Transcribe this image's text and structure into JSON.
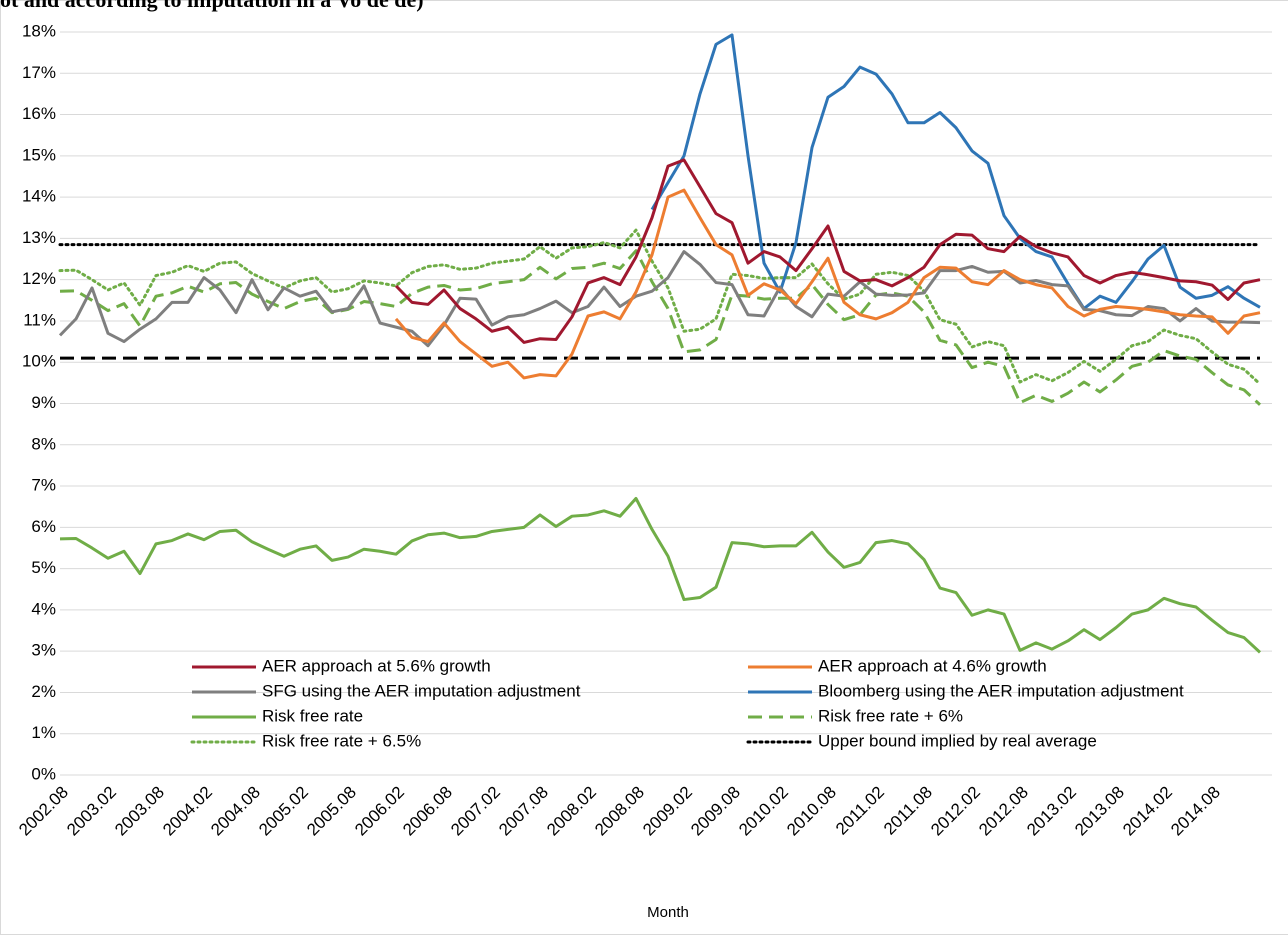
{
  "chart_data": {
    "type": "line",
    "title": "ot and according to imputation in a Vo de de)",
    "x_label": "Month",
    "categories": [
      "2002.08",
      null,
      null,
      "2003.02",
      null,
      null,
      "2003.08",
      null,
      null,
      "2004.02",
      null,
      null,
      "2004.08",
      null,
      null,
      "2005.02",
      null,
      null,
      "2005.08",
      null,
      null,
      "2006.02",
      null,
      null,
      "2006.08",
      null,
      null,
      "2007.02",
      null,
      null,
      "2007.08",
      null,
      null,
      "2008.02",
      null,
      null,
      "2008.08",
      null,
      null,
      "2009.02",
      null,
      null,
      "2009.08",
      null,
      null,
      "2010.02",
      null,
      null,
      "2010.08",
      null,
      null,
      "2011.02",
      null,
      null,
      "2011.08",
      null,
      null,
      "2012.02",
      null,
      null,
      "2012.08",
      null,
      null,
      "2013.02",
      null,
      null,
      "2013.08",
      null,
      null,
      "2014.02",
      null,
      null,
      "2014.08",
      null,
      null,
      null
    ],
    "ylim": [
      0,
      18
    ],
    "yticks": [
      {
        "value": 0,
        "label": "0%"
      },
      {
        "value": 1,
        "label": "1%"
      },
      {
        "value": 2,
        "label": "2%"
      },
      {
        "value": 3,
        "label": "3%"
      },
      {
        "value": 4,
        "label": "4%"
      },
      {
        "value": 5,
        "label": "5%"
      },
      {
        "value": 6,
        "label": "6%"
      },
      {
        "value": 7,
        "label": "7%"
      },
      {
        "value": 8,
        "label": "8%"
      },
      {
        "value": 9,
        "label": "9%"
      },
      {
        "value": 10,
        "label": "10%"
      },
      {
        "value": 11,
        "label": "11%"
      },
      {
        "value": 12,
        "label": "12%"
      },
      {
        "value": 13,
        "label": "13%"
      },
      {
        "value": 14,
        "label": "14%"
      },
      {
        "value": 15,
        "label": "15%"
      },
      {
        "value": 16,
        "label": "16%"
      },
      {
        "value": 17,
        "label": "17%"
      },
      {
        "value": 18,
        "label": "18%"
      }
    ],
    "grid": true,
    "series": [
      {
        "name": "AER approach at 5.6% growth",
        "color": "#a0182f",
        "style": "solid",
        "values": [
          null,
          null,
          null,
          null,
          null,
          null,
          null,
          null,
          null,
          null,
          null,
          null,
          null,
          null,
          null,
          null,
          null,
          null,
          null,
          null,
          null,
          11.85,
          11.45,
          11.4,
          11.75,
          11.3,
          11.05,
          10.75,
          10.85,
          10.48,
          10.57,
          10.55,
          11.1,
          11.92,
          12.05,
          11.88,
          12.55,
          13.5,
          14.75,
          14.9,
          14.25,
          13.6,
          13.38,
          12.4,
          12.68,
          12.55,
          12.22,
          12.75,
          13.3,
          12.2,
          11.97,
          12.0,
          11.85,
          12.05,
          12.3,
          12.85,
          13.1,
          13.08,
          12.75,
          12.68,
          13.05,
          12.8,
          12.65,
          12.55,
          12.1,
          11.92,
          12.1,
          12.18,
          12.12,
          12.05,
          11.97,
          11.95,
          11.87,
          11.52,
          11.92,
          12.0
        ]
      },
      {
        "name": "AER approach at 4.6% growth",
        "color": "#ed7d31",
        "style": "solid",
        "values": [
          null,
          null,
          null,
          null,
          null,
          null,
          null,
          null,
          null,
          null,
          null,
          null,
          null,
          null,
          null,
          null,
          null,
          null,
          null,
          null,
          null,
          11.05,
          10.6,
          10.5,
          10.95,
          10.5,
          10.2,
          9.9,
          10.0,
          9.62,
          9.7,
          9.67,
          10.2,
          11.12,
          11.22,
          11.05,
          11.7,
          12.6,
          14.0,
          14.17,
          13.5,
          12.85,
          12.6,
          11.62,
          11.9,
          11.75,
          11.42,
          11.95,
          12.52,
          11.45,
          11.15,
          11.05,
          11.2,
          11.45,
          12.05,
          12.3,
          12.28,
          11.95,
          11.88,
          12.22,
          12.0,
          11.88,
          11.8,
          11.35,
          11.12,
          11.28,
          11.35,
          11.32,
          11.28,
          11.22,
          11.15,
          11.12,
          11.1,
          10.7,
          11.12,
          11.2
        ]
      },
      {
        "name": "SFG using the AER imputation adjustment",
        "color": "#7f7f7f",
        "style": "solid",
        "values": [
          10.65,
          11.05,
          11.8,
          10.7,
          10.5,
          10.8,
          11.05,
          11.45,
          11.45,
          12.05,
          11.75,
          11.2,
          12.0,
          11.27,
          11.8,
          11.6,
          11.72,
          11.22,
          11.3,
          11.85,
          10.95,
          10.85,
          10.75,
          10.4,
          10.9,
          11.55,
          11.53,
          10.9,
          11.1,
          11.15,
          11.3,
          11.48,
          11.2,
          11.35,
          11.82,
          11.35,
          11.6,
          11.72,
          12.05,
          12.68,
          12.37,
          11.93,
          11.88,
          11.15,
          11.12,
          11.82,
          11.35,
          11.1,
          11.65,
          11.6,
          11.95,
          11.65,
          11.62,
          11.63,
          11.68,
          12.22,
          12.22,
          12.32,
          12.18,
          12.2,
          11.92,
          11.98,
          11.88,
          11.85,
          11.28,
          11.25,
          11.15,
          11.13,
          11.35,
          11.3,
          11.0,
          11.3,
          11.0,
          10.97,
          10.97,
          10.96
        ]
      },
      {
        "name": "Bloomberg using the AER imputation adjustment",
        "color": "#2e75b6",
        "style": "solid",
        "values": [
          null,
          null,
          null,
          null,
          null,
          null,
          null,
          null,
          null,
          null,
          null,
          null,
          null,
          null,
          null,
          null,
          null,
          null,
          null,
          null,
          null,
          null,
          null,
          null,
          null,
          null,
          null,
          null,
          null,
          null,
          null,
          null,
          null,
          null,
          null,
          null,
          null,
          13.7,
          14.35,
          15.0,
          16.5,
          17.7,
          17.93,
          15.0,
          12.4,
          11.7,
          12.9,
          15.2,
          16.42,
          16.68,
          17.15,
          16.98,
          16.5,
          15.8,
          15.8,
          16.05,
          15.68,
          15.12,
          14.82,
          13.55,
          13.0,
          12.68,
          12.55,
          11.9,
          11.3,
          11.6,
          11.45,
          11.95,
          12.5,
          12.83,
          11.82,
          11.55,
          11.62,
          11.83,
          11.55,
          11.33
        ]
      },
      {
        "name": "Risk free rate",
        "color": "#70ad47",
        "style": "solid",
        "values": [
          5.72,
          5.73,
          5.5,
          5.25,
          5.42,
          4.88,
          5.6,
          5.68,
          5.84,
          5.7,
          5.9,
          5.93,
          5.65,
          5.47,
          5.3,
          5.47,
          5.55,
          5.2,
          5.28,
          5.47,
          5.42,
          5.35,
          5.67,
          5.82,
          5.86,
          5.75,
          5.78,
          5.9,
          5.95,
          6.0,
          6.3,
          6.02,
          6.27,
          6.3,
          6.4,
          6.27,
          6.7,
          5.95,
          5.3,
          4.25,
          4.3,
          4.55,
          5.63,
          5.6,
          5.53,
          5.55,
          5.55,
          5.88,
          5.4,
          5.03,
          5.15,
          5.63,
          5.68,
          5.6,
          5.22,
          4.53,
          4.42,
          3.87,
          4.0,
          3.9,
          3.02,
          3.2,
          3.05,
          3.25,
          3.52,
          3.28,
          3.57,
          3.9,
          4.0,
          4.28,
          4.15,
          4.07,
          3.75,
          3.45,
          3.33,
          2.97
        ]
      },
      {
        "name": "Risk free rate + 6%",
        "color": "#70ad47",
        "style": "dashed",
        "values": [
          11.72,
          11.73,
          11.5,
          11.25,
          11.42,
          10.88,
          11.6,
          11.68,
          11.84,
          11.7,
          11.9,
          11.93,
          11.65,
          11.47,
          11.3,
          11.47,
          11.55,
          11.2,
          11.28,
          11.47,
          11.42,
          11.35,
          11.67,
          11.82,
          11.86,
          11.75,
          11.78,
          11.9,
          11.95,
          12.0,
          12.3,
          12.02,
          12.27,
          12.3,
          12.4,
          12.27,
          12.7,
          11.95,
          11.3,
          10.25,
          10.3,
          10.55,
          11.63,
          11.6,
          11.53,
          11.55,
          11.55,
          11.88,
          11.4,
          11.03,
          11.15,
          11.63,
          11.68,
          11.6,
          11.22,
          10.53,
          10.42,
          9.87,
          10.0,
          9.9,
          9.02,
          9.2,
          9.05,
          9.25,
          9.52,
          9.28,
          9.57,
          9.9,
          10.0,
          10.28,
          10.15,
          10.07,
          9.75,
          9.45,
          9.33,
          8.97
        ]
      },
      {
        "name": "Risk free rate + 6.5%",
        "color": "#70ad47",
        "style": "dotted",
        "values": [
          12.22,
          12.23,
          12.0,
          11.75,
          11.92,
          11.38,
          12.1,
          12.18,
          12.34,
          12.2,
          12.4,
          12.43,
          12.15,
          11.97,
          11.8,
          11.97,
          12.05,
          11.7,
          11.78,
          11.97,
          11.92,
          11.85,
          12.17,
          12.32,
          12.36,
          12.25,
          12.28,
          12.4,
          12.45,
          12.5,
          12.8,
          12.52,
          12.77,
          12.8,
          12.9,
          12.77,
          13.2,
          12.45,
          11.8,
          10.75,
          10.8,
          11.05,
          12.13,
          12.1,
          12.03,
          12.05,
          12.05,
          12.38,
          11.9,
          11.53,
          11.65,
          12.13,
          12.18,
          12.1,
          11.72,
          11.03,
          10.92,
          10.37,
          10.5,
          10.4,
          9.52,
          9.7,
          9.55,
          9.75,
          10.02,
          9.78,
          10.07,
          10.4,
          10.5,
          10.78,
          10.65,
          10.57,
          10.25,
          9.95,
          9.83,
          9.47
        ]
      },
      {
        "name": "Upper bound implied by real average",
        "color": "#000000",
        "style": "dotted",
        "values": [
          12.85,
          12.85,
          12.85,
          12.85,
          12.85,
          12.85,
          12.85,
          12.85,
          12.85,
          12.85,
          12.85,
          12.85,
          12.85,
          12.85,
          12.85,
          12.85,
          12.85,
          12.85,
          12.85,
          12.85,
          12.85,
          12.85,
          12.85,
          12.85,
          12.85,
          12.85,
          12.85,
          12.85,
          12.85,
          12.85,
          12.85,
          12.85,
          12.85,
          12.85,
          12.85,
          12.85,
          12.85,
          12.85,
          12.85,
          12.85,
          12.85,
          12.85,
          12.85,
          12.85,
          12.85,
          12.85,
          12.85,
          12.85,
          12.85,
          12.85,
          12.85,
          12.85,
          12.85,
          12.85,
          12.85,
          12.85,
          12.85,
          12.85,
          12.85,
          12.85,
          12.85,
          12.85,
          12.85,
          12.85,
          12.85,
          12.85,
          12.85,
          12.85,
          12.85,
          12.85,
          12.85,
          12.85,
          12.85,
          12.85,
          12.85,
          12.85
        ]
      },
      {
        "color": "#000000",
        "style": "dashed",
        "values": [
          10.1,
          10.1,
          10.1,
          10.1,
          10.1,
          10.1,
          10.1,
          10.1,
          10.1,
          10.1,
          10.1,
          10.1,
          10.1,
          10.1,
          10.1,
          10.1,
          10.1,
          10.1,
          10.1,
          10.1,
          10.1,
          10.1,
          10.1,
          10.1,
          10.1,
          10.1,
          10.1,
          10.1,
          10.1,
          10.1,
          10.1,
          10.1,
          10.1,
          10.1,
          10.1,
          10.1,
          10.1,
          10.1,
          10.1,
          10.1,
          10.1,
          10.1,
          10.1,
          10.1,
          10.1,
          10.1,
          10.1,
          10.1,
          10.1,
          10.1,
          10.1,
          10.1,
          10.1,
          10.1,
          10.1,
          10.1,
          10.1,
          10.1,
          10.1,
          10.1,
          10.1,
          10.1,
          10.1,
          10.1,
          10.1,
          10.1,
          10.1,
          10.1,
          10.1,
          10.1,
          10.1,
          10.1,
          10.1,
          10.1,
          10.1,
          10.1
        ]
      }
    ]
  }
}
